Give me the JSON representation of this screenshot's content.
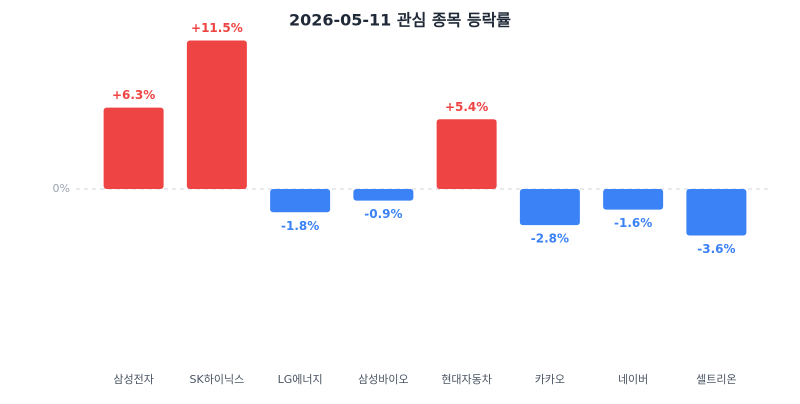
{
  "chart_data": {
    "type": "bar",
    "title": "2026-05-11 관심 종목 등락률",
    "categories": [
      "삼성전자",
      "SK하이닉스",
      "LG에너지",
      "삼성바이오",
      "현대자동차",
      "카카오",
      "네이버",
      "셀트리온"
    ],
    "values": [
      6.3,
      11.5,
      -1.8,
      -0.9,
      5.4,
      -2.8,
      -1.6,
      -3.6
    ],
    "value_labels": [
      "+6.3%",
      "+11.5%",
      "-1.8%",
      "-0.9%",
      "+5.4%",
      "-2.8%",
      "-1.6%",
      "-3.6%"
    ],
    "positive_color": "#ef4444",
    "negative_color": "#3b82f6",
    "ylim": [
      -12,
      12
    ],
    "yticks": [
      {
        "value": 0,
        "label": "0%"
      }
    ]
  }
}
